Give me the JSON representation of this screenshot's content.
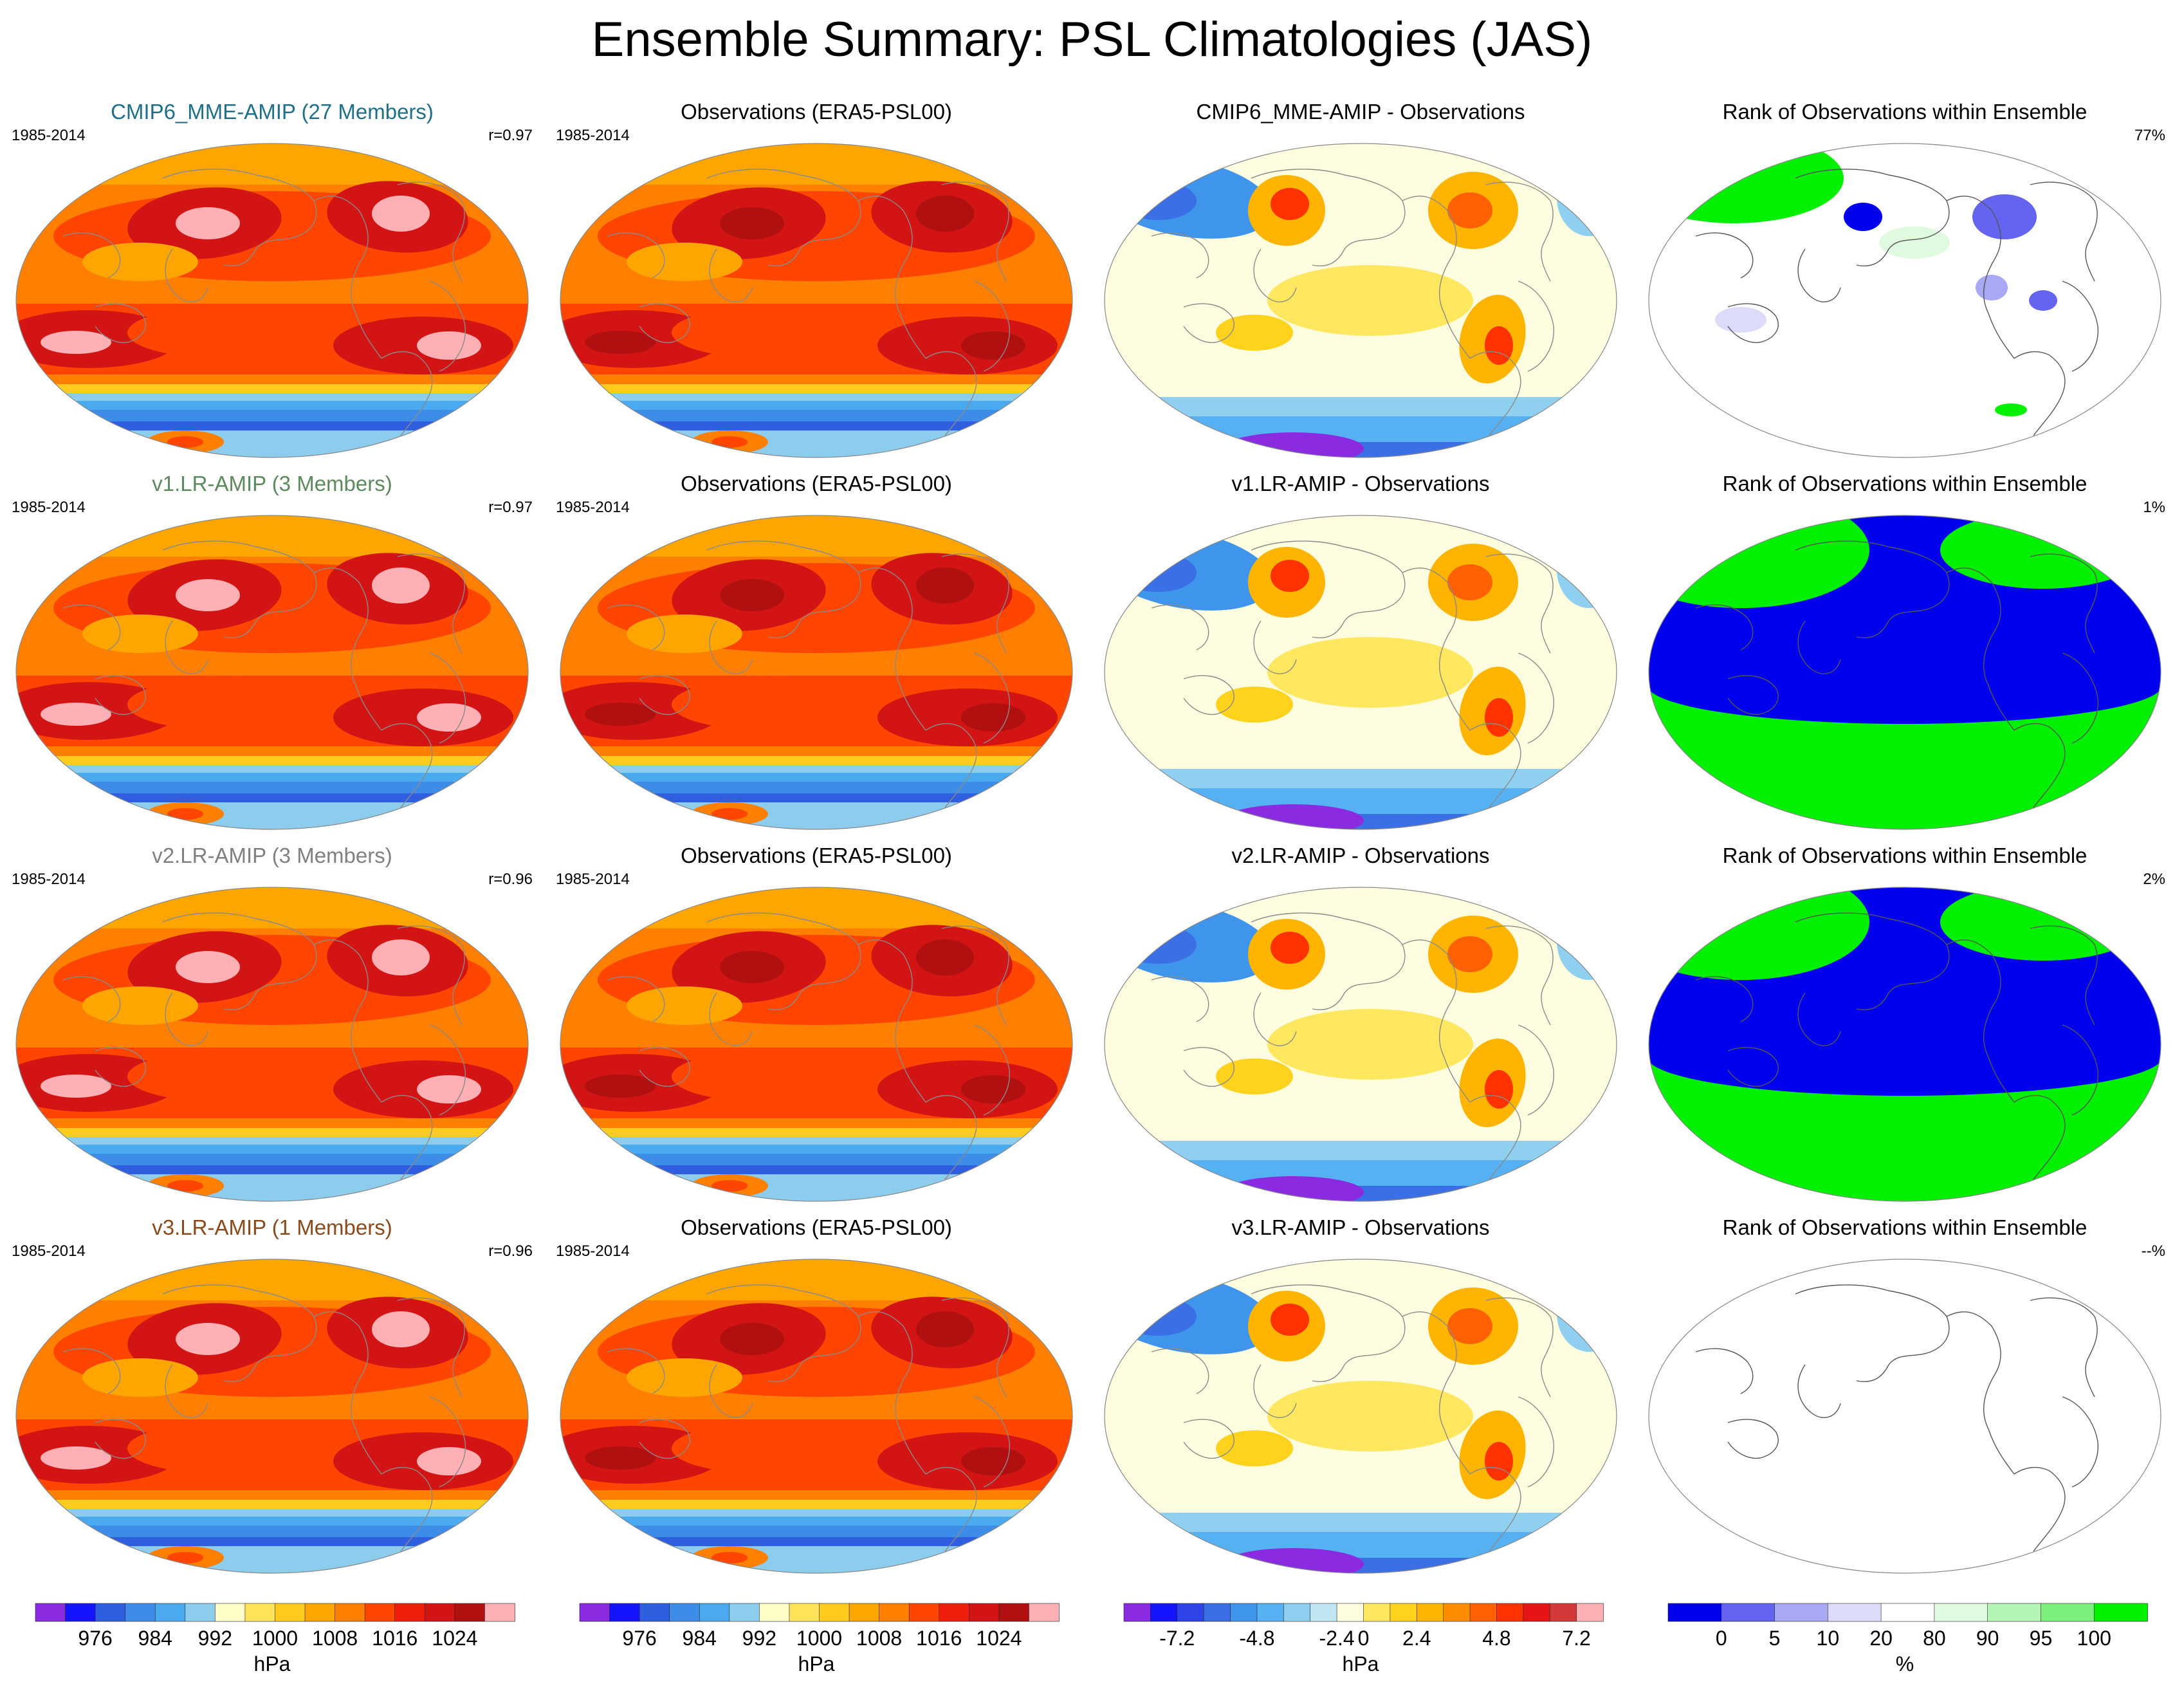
{
  "title": "Ensemble Summary: PSL Climatologies (JAS)",
  "columns": [
    {
      "id": "model",
      "panels": [
        {
          "title": "CMIP6_MME-AMIP (27 Members)",
          "title_color": "#1f6f8b",
          "left_label": "1985-2014",
          "right_label": "r=0.97"
        },
        {
          "title": "v1.LR-AMIP (3 Members)",
          "title_color": "#5d8a5d",
          "left_label": "1985-2014",
          "right_label": "r=0.97"
        },
        {
          "title": "v2.LR-AMIP (3 Members)",
          "title_color": "#808080",
          "left_label": "1985-2014",
          "right_label": "r=0.96"
        },
        {
          "title": "v3.LR-AMIP (1 Members)",
          "title_color": "#8b4a1c",
          "left_label": "1985-2014",
          "right_label": "r=0.96"
        }
      ]
    },
    {
      "id": "obs",
      "panels": [
        {
          "title": "Observations (ERA5-PSL00)",
          "title_color": "#000000",
          "left_label": "1985-2014",
          "right_label": ""
        },
        {
          "title": "Observations (ERA5-PSL00)",
          "title_color": "#000000",
          "left_label": "1985-2014",
          "right_label": ""
        },
        {
          "title": "Observations (ERA5-PSL00)",
          "title_color": "#000000",
          "left_label": "1985-2014",
          "right_label": ""
        },
        {
          "title": "Observations (ERA5-PSL00)",
          "title_color": "#000000",
          "left_label": "1985-2014",
          "right_label": ""
        }
      ]
    },
    {
      "id": "diff",
      "panels": [
        {
          "title": "CMIP6_MME-AMIP - Observations",
          "title_color": "#000000",
          "left_label": "",
          "right_label": ""
        },
        {
          "title": "v1.LR-AMIP - Observations",
          "title_color": "#000000",
          "left_label": "",
          "right_label": ""
        },
        {
          "title": "v2.LR-AMIP - Observations",
          "title_color": "#000000",
          "left_label": "",
          "right_label": ""
        },
        {
          "title": "v3.LR-AMIP - Observations",
          "title_color": "#000000",
          "left_label": "",
          "right_label": ""
        }
      ]
    },
    {
      "id": "rank",
      "panels": [
        {
          "title": "Rank of Observations within Ensemble",
          "title_color": "#000000",
          "left_label": "",
          "right_label": "77%"
        },
        {
          "title": "Rank of Observations within Ensemble",
          "title_color": "#000000",
          "left_label": "",
          "right_label": "1%"
        },
        {
          "title": "Rank of Observations within Ensemble",
          "title_color": "#000000",
          "left_label": "",
          "right_label": "2%"
        },
        {
          "title": "Rank of Observations within Ensemble",
          "title_color": "#000000",
          "left_label": "",
          "right_label": "--%"
        }
      ]
    }
  ],
  "colorbars": [
    {
      "units": "hPa",
      "colors": [
        "#8a2be2",
        "#1414ff",
        "#2f5fe0",
        "#3c8ce8",
        "#4aaaf0",
        "#8ccdee",
        "#fffdc8",
        "#ffe45a",
        "#ffcb1e",
        "#ffa500",
        "#ff7f00",
        "#ff4500",
        "#f01e0a",
        "#d21414",
        "#b01010",
        "#ffb0b4"
      ],
      "ticks": [
        "976",
        "984",
        "992",
        "1000",
        "1008",
        "1016",
        "1024"
      ],
      "tick_boundaries": [
        2,
        4,
        6,
        8,
        10,
        12,
        14
      ]
    },
    {
      "units": "hPa",
      "colors": [
        "#8a2be2",
        "#1414ff",
        "#2f5fe0",
        "#3c8ce8",
        "#4aaaf0",
        "#8ccdee",
        "#fffdc8",
        "#ffe45a",
        "#ffcb1e",
        "#ffa500",
        "#ff7f00",
        "#ff4500",
        "#f01e0a",
        "#d21414",
        "#b01010",
        "#ffb0b4"
      ],
      "ticks": [
        "976",
        "984",
        "992",
        "1000",
        "1008",
        "1016",
        "1024"
      ],
      "tick_boundaries": [
        2,
        4,
        6,
        8,
        10,
        12,
        14
      ]
    },
    {
      "units": "hPa",
      "colors": [
        "#8a2be2",
        "#1414ff",
        "#2f44e6",
        "#3b6fe6",
        "#3f94ec",
        "#56b1f2",
        "#8fd0f0",
        "#c0e6f4",
        "#fffde0",
        "#ffe860",
        "#ffd21e",
        "#ffb400",
        "#ff8c00",
        "#ff6000",
        "#ff3200",
        "#e61414",
        "#d23a3a",
        "#ffb0b4"
      ],
      "ticks": [
        "-7.2",
        "-4.8",
        "-2.4",
        "0",
        "2.4",
        "4.8",
        "7.2"
      ],
      "tick_boundaries": [
        2,
        5,
        8,
        9,
        11,
        14,
        17
      ]
    },
    {
      "units": "%",
      "colors": [
        "#0000ee",
        "#6464f0",
        "#a8a8f4",
        "#dcdcfa",
        "#ffffff",
        "#e0fae0",
        "#b4f4b4",
        "#7cf07c",
        "#00f000"
      ],
      "ticks": [
        "0",
        "5",
        "10",
        "20",
        "80",
        "90",
        "95",
        "100"
      ],
      "tick_boundaries": [
        1,
        2,
        3,
        4,
        5,
        6,
        7,
        8
      ]
    }
  ]
}
